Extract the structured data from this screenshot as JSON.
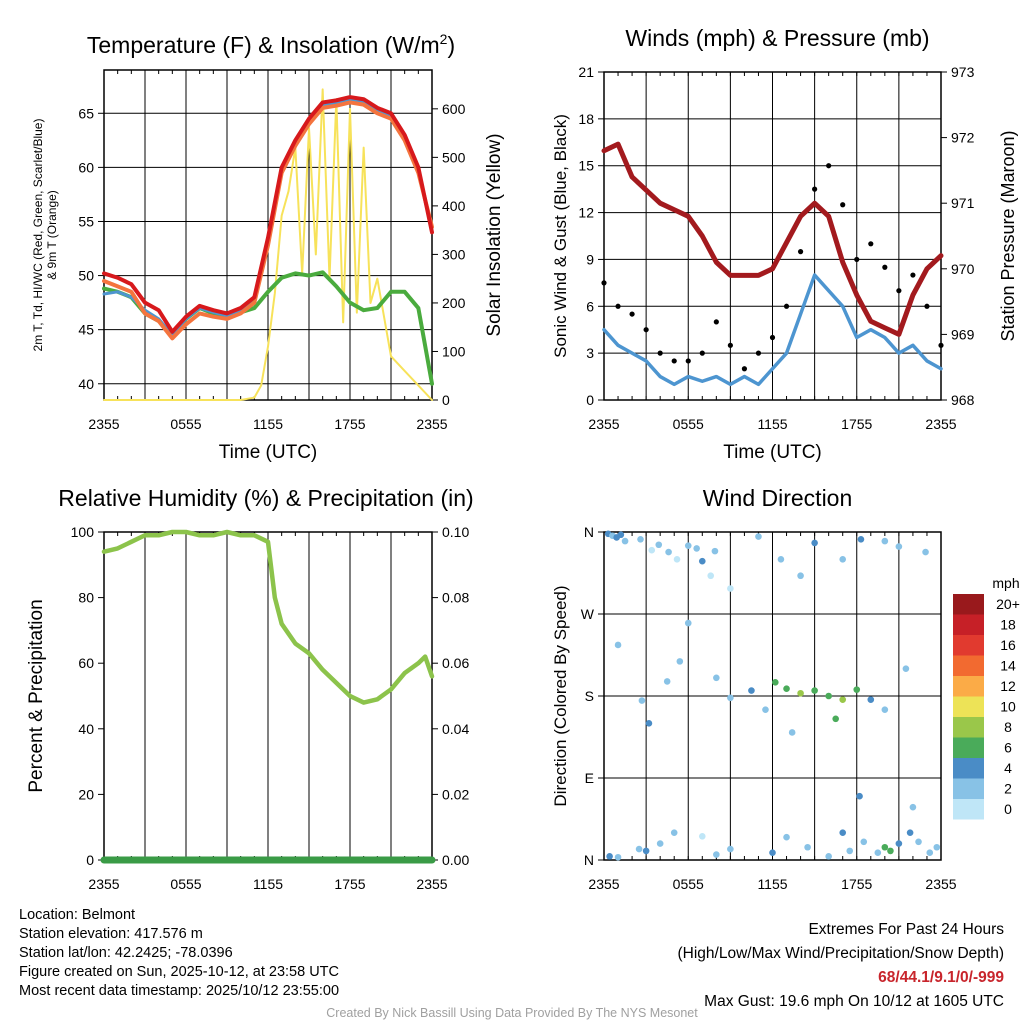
{
  "chart_data": [
    {
      "id": "temp",
      "type": "line",
      "title": "Temperature (F) & Insolation (W/m",
      "title_sup": "2",
      "title_end": ")",
      "xlabel": "Time (UTC)",
      "ylabel_left_line1": "2m T, Td, HI/WC (Red, Green, Scarlet/Blue)",
      "ylabel_left_line2": "& 9m T (Orange)",
      "ylabel_right": "Solar Insolation (Yellow)",
      "x_ticks": [
        "2355",
        "0555",
        "1155",
        "1755",
        "2355"
      ],
      "xlim": [
        0,
        24
      ],
      "ylim_left": [
        38.5,
        69
      ],
      "yticks_left": [
        40,
        45,
        50,
        55,
        60,
        65
      ],
      "ylim_right": [
        0,
        680
      ],
      "yticks_right": [
        0,
        100,
        200,
        300,
        400,
        500,
        600
      ],
      "colors": {
        "temp": "#d7191c",
        "temp9m": "#f4743e",
        "windchill": "#4d95d0",
        "dewpoint": "#4aab3e",
        "solar": "#f7e25a"
      },
      "series": [
        {
          "name": "2m T",
          "x": [
            0,
            1,
            2,
            3,
            4,
            5,
            6,
            7,
            8,
            9,
            10,
            11,
            12,
            13,
            14,
            15,
            16,
            17,
            18,
            19,
            20,
            21,
            22,
            23,
            24
          ],
          "values": [
            50.2,
            49.8,
            49.2,
            47.5,
            46.8,
            44.8,
            46.2,
            47.2,
            46.8,
            46.5,
            47.0,
            48.0,
            53.5,
            60.0,
            62.5,
            64.5,
            66.0,
            66.2,
            66.5,
            66.3,
            65.5,
            65.0,
            63.0,
            60.0,
            54.0
          ]
        },
        {
          "name": "9m T",
          "x": [
            0,
            1,
            2,
            3,
            4,
            5,
            6,
            7,
            8,
            9,
            10,
            11,
            12,
            13,
            14,
            15,
            16,
            17,
            18,
            19,
            20,
            21,
            22,
            23,
            24
          ],
          "values": [
            49.5,
            49.0,
            48.5,
            46.5,
            45.8,
            44.2,
            45.5,
            46.5,
            46.2,
            46.0,
            46.5,
            47.5,
            52.8,
            59.5,
            62.0,
            64.0,
            65.5,
            65.7,
            66.0,
            65.8,
            65.0,
            64.5,
            62.5,
            59.5,
            54.5
          ]
        },
        {
          "name": "HI/WC",
          "x": [
            0,
            1,
            2,
            3,
            4,
            5,
            6,
            7,
            8,
            9,
            10,
            11,
            12,
            13,
            14,
            15,
            16,
            17,
            18,
            19,
            20,
            21,
            22,
            23,
            24
          ],
          "values": [
            48.3,
            48.5,
            48.0,
            46.8,
            46.0,
            44.5,
            46.0,
            47.0,
            46.6,
            46.3,
            46.8,
            47.8,
            53.3,
            59.8,
            62.3,
            64.3,
            65.8,
            66.0,
            66.3,
            66.1,
            65.3,
            64.8,
            62.8,
            59.8,
            54.2
          ]
        },
        {
          "name": "Td",
          "x": [
            0,
            1,
            2,
            3,
            4,
            5,
            6,
            7,
            8,
            9,
            10,
            11,
            12,
            13,
            14,
            15,
            16,
            17,
            18,
            19,
            20,
            21,
            22,
            23,
            24
          ],
          "values": [
            48.8,
            48.5,
            48.0,
            46.5,
            45.8,
            44.5,
            46.0,
            47.0,
            46.5,
            46.3,
            46.6,
            47.0,
            48.5,
            49.8,
            50.2,
            50.0,
            50.3,
            49.0,
            47.5,
            46.8,
            47.0,
            48.5,
            48.5,
            47.0,
            40.0
          ]
        },
        {
          "name": "Solar",
          "x": [
            0,
            1,
            2,
            3,
            4,
            5,
            6,
            7,
            8,
            9,
            10,
            11,
            11.5,
            12,
            12.5,
            13,
            13.5,
            14,
            14.5,
            15,
            15.5,
            16,
            16.5,
            17,
            17.5,
            18,
            18.5,
            19,
            19.5,
            20,
            21,
            22,
            23,
            24
          ],
          "values": [
            0,
            0,
            0,
            0,
            0,
            0,
            0,
            0,
            0,
            0,
            0,
            5,
            30,
            110,
            220,
            380,
            430,
            520,
            260,
            560,
            300,
            640,
            250,
            620,
            160,
            600,
            180,
            520,
            200,
            250,
            90,
            60,
            30,
            0
          ]
        }
      ]
    },
    {
      "id": "wind",
      "type": "scatter",
      "title": "Winds (mph) & Pressure (mb)",
      "xlabel": "Time (UTC)",
      "ylabel_left": "Sonic Wind & Gust (Blue, Black)",
      "ylabel_right": "Station Pressure (Maroon)",
      "x_ticks": [
        "2355",
        "0555",
        "1155",
        "1755",
        "2355"
      ],
      "xlim": [
        0,
        24
      ],
      "ylim_left": [
        0,
        21
      ],
      "yticks_left": [
        0,
        3,
        6,
        9,
        12,
        15,
        18,
        21
      ],
      "ylim_right": [
        968,
        973
      ],
      "yticks_right": [
        968,
        969,
        970,
        971,
        972,
        973
      ],
      "colors": {
        "wind": "#4d95d0",
        "gust": "#000000",
        "pressure": "#a31a1e"
      },
      "series": [
        {
          "name": "Sonic Wind",
          "x": [
            0,
            1,
            2,
            3,
            4,
            5,
            6,
            7,
            8,
            9,
            10,
            11,
            12,
            13,
            14,
            15,
            16,
            17,
            18,
            19,
            20,
            21,
            22,
            23,
            24
          ],
          "values": [
            4.5,
            3.5,
            3.0,
            2.5,
            1.5,
            1.0,
            1.5,
            1.2,
            1.5,
            1.0,
            1.5,
            1.0,
            2.0,
            3.0,
            5.5,
            8.0,
            7.0,
            6.0,
            4.0,
            4.5,
            4.0,
            3.0,
            3.5,
            2.5,
            2.0
          ]
        },
        {
          "name": "Gust",
          "x": [
            0,
            1,
            2,
            3,
            4,
            5,
            6,
            7,
            8,
            9,
            10,
            11,
            12,
            13,
            14,
            15,
            16,
            17,
            18,
            19,
            20,
            21,
            22,
            23,
            24
          ],
          "values": [
            7.5,
            6.0,
            5.5,
            4.5,
            3.0,
            2.5,
            2.5,
            3.0,
            5.0,
            3.5,
            2.0,
            3.0,
            4.0,
            6.0,
            9.5,
            13.5,
            15.0,
            12.5,
            9.0,
            10.0,
            8.5,
            7.0,
            8.0,
            6.0,
            3.5
          ]
        },
        {
          "name": "Pressure",
          "x": [
            0,
            1,
            2,
            3,
            4,
            5,
            6,
            7,
            8,
            9,
            10,
            11,
            12,
            13,
            14,
            15,
            16,
            17,
            18,
            19,
            20,
            21,
            22,
            23,
            24
          ],
          "values": [
            971.8,
            971.9,
            971.4,
            971.2,
            971.0,
            970.9,
            970.8,
            970.5,
            970.1,
            969.9,
            969.9,
            969.9,
            970.0,
            970.4,
            970.8,
            971.0,
            970.8,
            970.1,
            969.6,
            969.2,
            969.1,
            969.0,
            969.6,
            970.0,
            970.2
          ]
        }
      ]
    },
    {
      "id": "rh",
      "type": "line",
      "title": "Relative Humidity (%) & Precipitation (in)",
      "ylabel_left": "Percent & Precipitation",
      "x_ticks": [
        "2355",
        "0555",
        "1155",
        "1755",
        "2355"
      ],
      "xlim": [
        0,
        24
      ],
      "ylim_left": [
        0,
        100
      ],
      "yticks_left": [
        0,
        20,
        40,
        60,
        80,
        100
      ],
      "ylim_right": [
        0,
        0.1
      ],
      "yticks_right": [
        "0.00",
        "0.02",
        "0.04",
        "0.06",
        "0.08",
        "0.10"
      ],
      "colors": {
        "rh": "#8cc34b",
        "precip": "#3a9b46"
      },
      "series": [
        {
          "name": "RH",
          "x": [
            0,
            1,
            2,
            3,
            4,
            5,
            6,
            7,
            8,
            9,
            10,
            11,
            12,
            12.5,
            13,
            14,
            15,
            16,
            17,
            18,
            19,
            20,
            21,
            22,
            23,
            23.5,
            24
          ],
          "values": [
            94,
            95,
            97,
            99,
            99,
            100,
            100,
            99,
            99,
            100,
            99,
            99,
            97,
            80,
            72,
            66,
            63,
            58,
            54,
            50,
            48,
            49,
            52,
            57,
            60,
            62,
            56
          ]
        },
        {
          "name": "Precip",
          "x": [
            0,
            24
          ],
          "values": [
            0,
            0
          ]
        }
      ]
    },
    {
      "id": "dir",
      "type": "scatter",
      "title": "Wind Direction",
      "ylabel_left": "Direction (Colored By Speed)",
      "x_ticks": [
        "2355",
        "0555",
        "1155",
        "1755",
        "2355"
      ],
      "xlim": [
        0,
        24
      ],
      "ylim_left": [
        0,
        360
      ],
      "direction_labels": [
        "N",
        "E",
        "S",
        "W",
        "N"
      ],
      "legend_title": "mph",
      "legend_labels": [
        "20+",
        "18",
        "16",
        "14",
        "12",
        "10",
        "8",
        "6",
        "4",
        "2",
        "0"
      ],
      "legend_colors": [
        "#99191c",
        "#c62027",
        "#e13a2f",
        "#f26a30",
        "#fbab47",
        "#ede357",
        "#9ac74a",
        "#4aab5a",
        "#4a8cc6",
        "#88c2e6",
        "#bfe6f7"
      ],
      "points": [
        [
          0.3,
          358,
          4
        ],
        [
          0.6,
          356,
          3
        ],
        [
          0.9,
          354,
          4
        ],
        [
          1.2,
          357,
          5
        ],
        [
          1.5,
          350,
          3
        ],
        [
          2.6,
          352,
          2
        ],
        [
          3.4,
          340,
          1
        ],
        [
          3.9,
          346,
          2
        ],
        [
          4.6,
          338,
          2
        ],
        [
          5.2,
          330,
          1
        ],
        [
          6.0,
          345,
          2
        ],
        [
          6.6,
          342,
          3
        ],
        [
          7.0,
          328,
          4
        ],
        [
          7.6,
          312,
          1
        ],
        [
          7.9,
          339,
          2
        ],
        [
          9.0,
          298,
          1
        ],
        [
          11.0,
          355,
          2
        ],
        [
          12.6,
          330,
          2
        ],
        [
          14.0,
          312,
          2
        ],
        [
          15.0,
          348,
          4
        ],
        [
          17.0,
          330,
          2
        ],
        [
          18.3,
          352,
          4
        ],
        [
          20.0,
          350,
          3
        ],
        [
          21.0,
          344,
          2
        ],
        [
          22.9,
          338,
          2
        ],
        [
          1.0,
          236,
          2
        ],
        [
          2.7,
          175,
          3
        ],
        [
          3.2,
          150,
          4
        ],
        [
          4.5,
          196,
          2
        ],
        [
          5.4,
          218,
          3
        ],
        [
          6.0,
          260,
          2
        ],
        [
          8.0,
          200,
          3
        ],
        [
          9.0,
          178,
          2
        ],
        [
          10.5,
          186,
          4
        ],
        [
          11.5,
          165,
          2
        ],
        [
          12.2,
          195,
          6
        ],
        [
          13.0,
          188,
          7
        ],
        [
          14.0,
          183,
          8
        ],
        [
          15.0,
          186,
          6
        ],
        [
          16.0,
          180,
          7
        ],
        [
          17.0,
          176,
          8
        ],
        [
          18.0,
          187,
          6
        ],
        [
          19.0,
          176,
          4
        ],
        [
          20.0,
          165,
          3
        ],
        [
          21.5,
          210,
          2
        ],
        [
          16.5,
          155,
          6
        ],
        [
          13.4,
          140,
          3
        ],
        [
          0.4,
          4,
          4
        ],
        [
          1.0,
          3,
          3
        ],
        [
          2.5,
          12,
          3
        ],
        [
          3.0,
          10,
          4
        ],
        [
          4.0,
          18,
          2
        ],
        [
          5.0,
          30,
          2
        ],
        [
          7.0,
          26,
          1
        ],
        [
          8.0,
          6,
          2
        ],
        [
          9.0,
          12,
          3
        ],
        [
          12.0,
          8,
          4
        ],
        [
          13.0,
          25,
          2
        ],
        [
          14.5,
          14,
          3
        ],
        [
          16.0,
          4,
          2
        ],
        [
          17.0,
          30,
          4
        ],
        [
          17.5,
          10,
          3
        ],
        [
          18.5,
          20,
          2
        ],
        [
          19.5,
          8,
          2
        ],
        [
          20.0,
          14,
          6
        ],
        [
          20.4,
          10,
          7
        ],
        [
          21.0,
          18,
          5
        ],
        [
          21.8,
          30,
          4
        ],
        [
          22.4,
          20,
          3
        ],
        [
          23.2,
          8,
          2
        ],
        [
          23.7,
          14,
          3
        ],
        [
          22.0,
          58,
          2
        ],
        [
          18.2,
          70,
          4
        ]
      ]
    }
  ],
  "info": {
    "location": "Location: Belmont",
    "elevation": "Station elevation: 417.576 m",
    "latlon": "Station lat/lon: 42.2425; -78.0396",
    "created": "Figure created on Sun, 2025-10-12, at 23:58 UTC",
    "recent": "Most recent data timestamp: 2025/10/12 23:55:00"
  },
  "extremes": {
    "line1": "Extremes For Past 24 Hours",
    "line2": "(High/Low/Max Wind/Precipitation/Snow Depth)",
    "values": "68/44.1/9.1/0/-999",
    "gust": "Max Gust: 19.6 mph On 10/12 at 1605 UTC"
  },
  "credit": "Created By Nick Bassill Using Data Provided By The NYS Mesonet"
}
